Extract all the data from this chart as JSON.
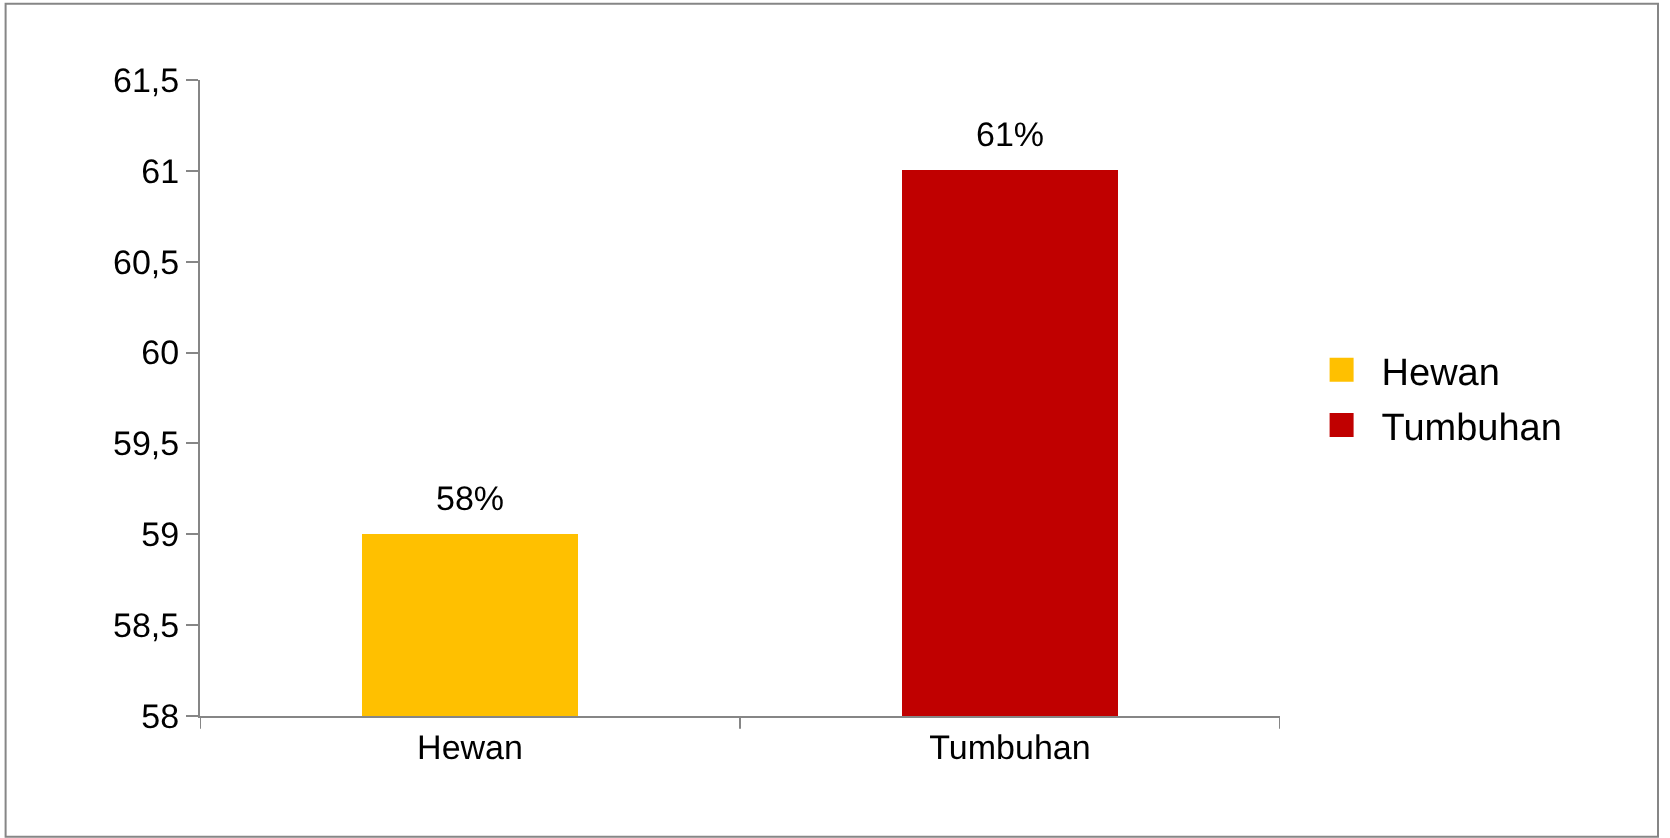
{
  "chart_data": {
    "type": "bar",
    "categories": [
      "Hewan",
      "Tumbuhan"
    ],
    "series": [
      {
        "name": "Hewan",
        "color": "#ffc000",
        "values": [
          59,
          null
        ]
      },
      {
        "name": "Tumbuhan",
        "color": "#c00000",
        "values": [
          null,
          61
        ]
      }
    ],
    "annotations": [
      {
        "text": "58%",
        "x": "Hewan",
        "y": 59
      },
      {
        "text": "61%",
        "x": "Tumbuhan",
        "y": 61
      }
    ],
    "ylim": [
      58,
      61.5
    ],
    "yticks": [
      58,
      {
        "value": 58.5,
        "label": "58,5"
      },
      59,
      {
        "value": 59.5,
        "label": "59,5"
      },
      60,
      {
        "value": 60.5,
        "label": "60,5"
      },
      61,
      {
        "value": 61.5,
        "label": "61,5"
      }
    ],
    "legend": "right"
  }
}
